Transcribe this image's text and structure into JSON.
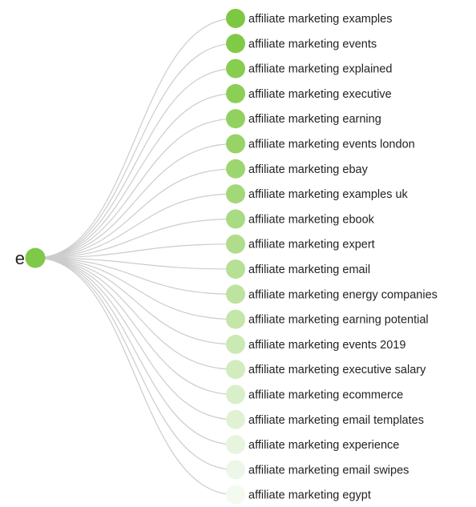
{
  "root": {
    "label": "e",
    "color": "#7ec84a"
  },
  "leaves": [
    {
      "label": "affiliate marketing examples",
      "color": "#7dc843"
    },
    {
      "label": "affiliate marketing events",
      "color": "#81ca48"
    },
    {
      "label": "affiliate marketing explained",
      "color": "#86cd50"
    },
    {
      "label": "affiliate marketing executive",
      "color": "#8bcf57"
    },
    {
      "label": "affiliate marketing earning",
      "color": "#91d15f"
    },
    {
      "label": "affiliate marketing events london",
      "color": "#97d367"
    },
    {
      "label": "affiliate marketing ebay",
      "color": "#9dd670"
    },
    {
      "label": "affiliate marketing examples uk",
      "color": "#a3d879"
    },
    {
      "label": "affiliate marketing ebook",
      "color": "#a9db82"
    },
    {
      "label": "affiliate marketing expert",
      "color": "#afdd8b"
    },
    {
      "label": "affiliate marketing email",
      "color": "#b6e095"
    },
    {
      "label": "affiliate marketing energy companies",
      "color": "#bde39f"
    },
    {
      "label": "affiliate marketing earning potential",
      "color": "#c4e6a9"
    },
    {
      "label": "affiliate marketing events 2019",
      "color": "#cbe9b4"
    },
    {
      "label": "affiliate marketing executive salary",
      "color": "#d2ecbe"
    },
    {
      "label": "affiliate marketing ecommerce",
      "color": "#d9efc9"
    },
    {
      "label": "affiliate marketing email templates",
      "color": "#e0f2d3"
    },
    {
      "label": "affiliate marketing experience",
      "color": "#e7f5de"
    },
    {
      "label": "affiliate marketing email swipes",
      "color": "#edf7e7"
    },
    {
      "label": "affiliate marketing egypt",
      "color": "#f3faef"
    }
  ]
}
